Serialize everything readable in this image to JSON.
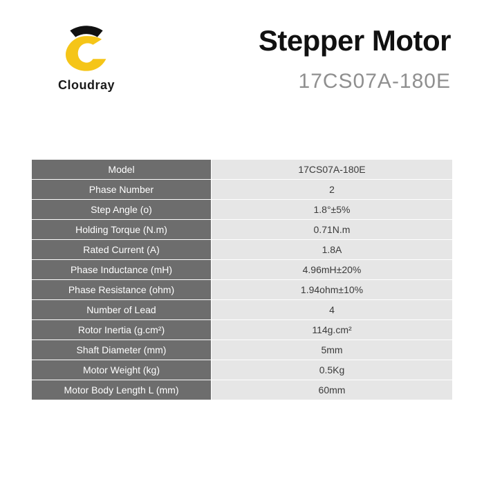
{
  "brand": {
    "name": "Cloudray",
    "logo_colors": {
      "arc": "#111111",
      "c_body": "#f5c518",
      "accent": "#ffffff"
    }
  },
  "header": {
    "title": "Stepper Motor",
    "model_code": "17CS07A-180E",
    "title_color": "#111111",
    "model_color": "#8f8f8f"
  },
  "table": {
    "label_bg": "#6d6d6d",
    "label_fg": "#ffffff",
    "value_bg": "#e6e6e6",
    "value_fg": "#3a3a3a",
    "rows": [
      {
        "label": "Model",
        "value": "17CS07A-180E"
      },
      {
        "label": "Phase Number",
        "value": "2"
      },
      {
        "label": "Step Angle (o)",
        "value": "1.8°±5%"
      },
      {
        "label": "Holding Torque (N.m)",
        "value": "0.71N.m"
      },
      {
        "label": "Rated Current (A)",
        "value": "1.8A"
      },
      {
        "label": "Phase Inductance (mH)",
        "value": "4.96mH±20%"
      },
      {
        "label": "Phase Resistance (ohm)",
        "value": "1.94ohm±10%"
      },
      {
        "label": "Number of Lead",
        "value": "4"
      },
      {
        "label": "Rotor Inertia (g.cm²)",
        "value": "114g.cm²"
      },
      {
        "label": "Shaft Diameter (mm)",
        "value": "5mm"
      },
      {
        "label": "Motor Weight (kg)",
        "value": "0.5Kg"
      },
      {
        "label": "Motor Body Length L (mm)",
        "value": "60mm"
      }
    ]
  }
}
